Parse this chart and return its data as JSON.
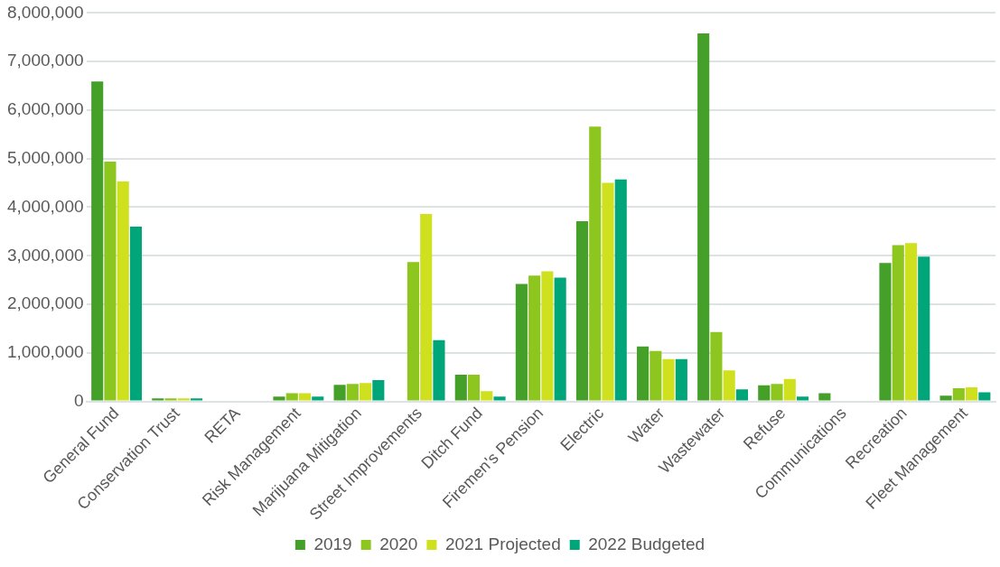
{
  "chart_data": {
    "type": "bar",
    "categories": [
      "General Fund",
      "Conservation Trust",
      "RETA",
      "Risk Management",
      "Marijuana Mitigation",
      "Street Improvements",
      "Ditch Fund",
      "Firemen's Pension",
      "Electric",
      "Water",
      "Wastewater",
      "Refuse",
      "Communications",
      "Recreation",
      "Fleet Management"
    ],
    "series": [
      {
        "name": "2019",
        "color": "#45a02a",
        "values": [
          6590000,
          60000,
          null,
          100000,
          340000,
          null,
          550000,
          2420000,
          3710000,
          1130000,
          7580000,
          330000,
          170000,
          2850000,
          120000
        ]
      },
      {
        "name": "2020",
        "color": "#8cc61e",
        "values": [
          4940000,
          60000,
          null,
          170000,
          360000,
          2870000,
          550000,
          2590000,
          5660000,
          1040000,
          1430000,
          360000,
          null,
          3220000,
          270000
        ]
      },
      {
        "name": "2021 Projected",
        "color": "#cfe01e",
        "values": [
          4530000,
          60000,
          null,
          170000,
          380000,
          3860000,
          210000,
          2680000,
          4500000,
          870000,
          640000,
          460000,
          null,
          3260000,
          290000
        ]
      },
      {
        "name": "2022 Budgeted",
        "color": "#00a67a",
        "values": [
          3600000,
          60000,
          null,
          100000,
          440000,
          1260000,
          100000,
          2550000,
          4570000,
          870000,
          250000,
          100000,
          null,
          2980000,
          190000
        ]
      }
    ],
    "ylim": [
      0,
      8000000
    ],
    "yticks": [
      0,
      {
        "value": 1000000,
        "label": "1,000,000"
      },
      {
        "value": 2000000,
        "label": "2,000,000"
      },
      {
        "value": 3000000,
        "label": "3,000,000"
      },
      {
        "value": 4000000,
        "label": "4,000,000"
      },
      {
        "value": 5000000,
        "label": "5,000,000"
      },
      {
        "value": 6000000,
        "label": "6,000,000"
      },
      {
        "value": 7000000,
        "label": "7,000,000"
      },
      {
        "value": 8000000,
        "label": "8,000,000"
      }
    ],
    "grid": "y",
    "legend": "bottom"
  }
}
